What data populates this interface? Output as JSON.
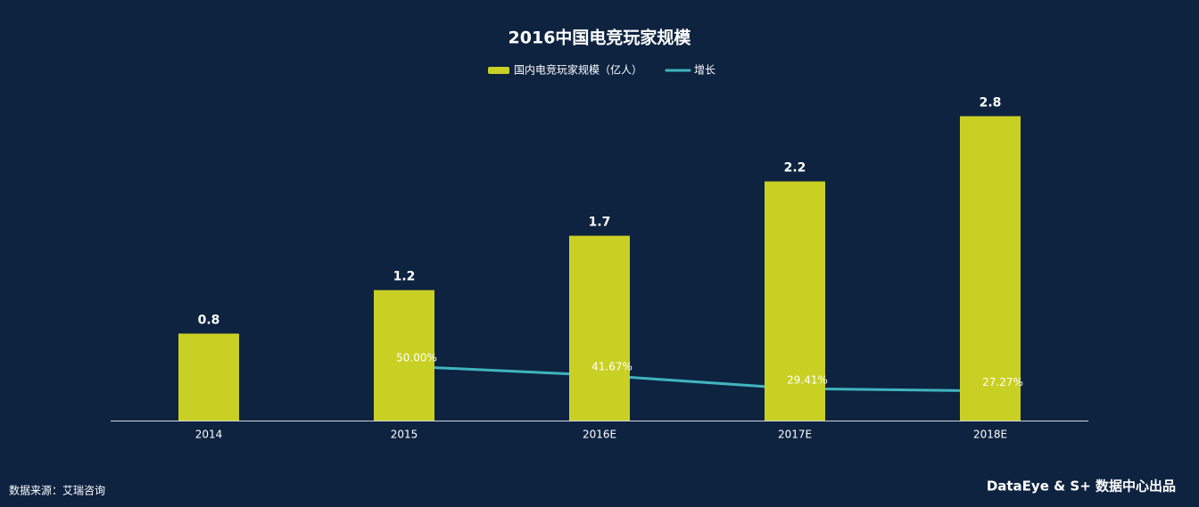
{
  "chart_data": {
    "type": "bar_line",
    "title": "2016中国电竞玩家规模",
    "categories": [
      "2014",
      "2015",
      "2016E",
      "2017E",
      "2018E"
    ],
    "series": [
      {
        "name": "国内电竞玩家规模（亿人）",
        "type": "bar",
        "color": "#c9d024",
        "values": [
          0.8,
          1.2,
          1.7,
          2.2,
          2.8
        ]
      },
      {
        "name": "增长",
        "type": "line",
        "axis": "y2",
        "color": "#3fb4c0",
        "values": [
          null,
          50.0,
          41.67,
          29.41,
          27.27
        ],
        "value_labels": [
          null,
          "50.00%",
          "41.67%",
          "29.41%",
          "27.27%"
        ]
      }
    ],
    "ylim": [
      0,
      3
    ],
    "y2lim": [
      0,
      300
    ],
    "legend": "top",
    "source": "数据来源：艾瑞咨询",
    "credit": "DataEye & S+ 数据中心出品"
  }
}
